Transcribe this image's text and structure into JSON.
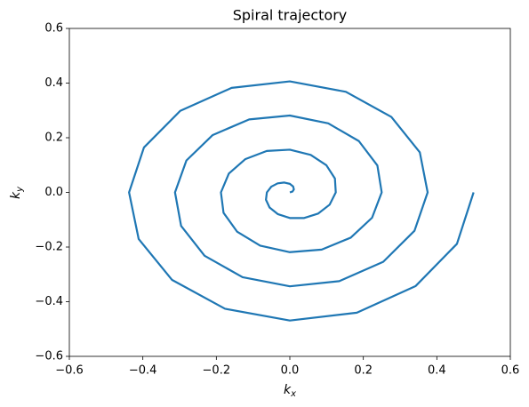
{
  "chart_data": {
    "type": "line",
    "title": "Spiral trajectory",
    "xlabel": {
      "text": "k",
      "subscript": "x"
    },
    "ylabel": {
      "text": "k",
      "subscript": "y"
    },
    "xlim": [
      -0.6,
      0.6
    ],
    "ylim": [
      -0.6,
      0.6
    ],
    "xticks": [
      {
        "value": -0.6,
        "label": "−0.6"
      },
      {
        "value": -0.4,
        "label": "−0.4"
      },
      {
        "value": -0.2,
        "label": "−0.2"
      },
      {
        "value": 0,
        "label": "0.0"
      },
      {
        "value": 0.2,
        "label": "0.2"
      },
      {
        "value": 0.4,
        "label": "0.4"
      },
      {
        "value": 0.6,
        "label": "0.6"
      }
    ],
    "yticks": [
      {
        "value": -0.6,
        "label": "−0.6"
      },
      {
        "value": -0.4,
        "label": "−0.4"
      },
      {
        "value": -0.2,
        "label": "−0.2"
      },
      {
        "value": 0,
        "label": "0.0"
      },
      {
        "value": 0.2,
        "label": "0.2"
      },
      {
        "value": 0.4,
        "label": "0.4"
      },
      {
        "value": 0.6,
        "label": "0.6"
      }
    ],
    "grid": false,
    "series": [
      {
        "color": "#1f77b4",
        "x": [
          0,
          0.0072,
          0.011,
          0.009,
          0,
          -0.015,
          -0.0331,
          -0.0505,
          -0.0625,
          -0.065,
          -0.0552,
          -0.0329,
          0,
          0.0389,
          0.0773,
          0.1083,
          0.125,
          0.1227,
          0.0994,
          0.0568,
          0,
          -0.0628,
          -0.1215,
          -0.166,
          -0.1875,
          -0.1804,
          -0.1436,
          -0.0807,
          0,
          0.0867,
          0.1657,
          0.2238,
          0.25,
          0.2382,
          0.1878,
          0.1046,
          0,
          -0.1106,
          -0.2099,
          -0.2815,
          -0.3125,
          -0.2959,
          -0.232,
          -0.1286,
          0,
          0.1345,
          0.2541,
          0.3392,
          0.375,
          0.3537,
          0.2762,
          0.1525,
          0,
          -0.1585,
          -0.2983,
          -0.397,
          -0.4375,
          -0.4114,
          -0.3204,
          -0.1764,
          0,
          0.1824,
          0.3425,
          0.4547,
          0.5
        ],
        "values": [
          0,
          0.003,
          0.011,
          0.0216,
          0.0313,
          0.0361,
          0.0331,
          0.0209,
          0,
          -0.0269,
          -0.0552,
          -0.0794,
          -0.0938,
          -0.0938,
          -0.0773,
          -0.0449,
          0,
          0.0508,
          0.0994,
          0.1371,
          0.1563,
          0.1516,
          0.1215,
          0.0688,
          0,
          -0.0747,
          -0.1436,
          -0.1949,
          -0.2188,
          -0.2093,
          -0.1657,
          -0.0927,
          0,
          0.0987,
          0.1878,
          0.2526,
          0.2813,
          0.2671,
          0.2099,
          0.1166,
          0,
          -0.1226,
          -0.232,
          -0.3104,
          -0.3438,
          -0.3248,
          -0.2541,
          -0.1405,
          0,
          0.1465,
          0.2762,
          0.3681,
          0.4063,
          0.3825,
          0.2983,
          0.1644,
          0,
          -0.1704,
          -0.3204,
          -0.4258,
          -0.4688,
          -0.4403,
          -0.3425,
          -0.1884,
          0
        ]
      }
    ]
  }
}
